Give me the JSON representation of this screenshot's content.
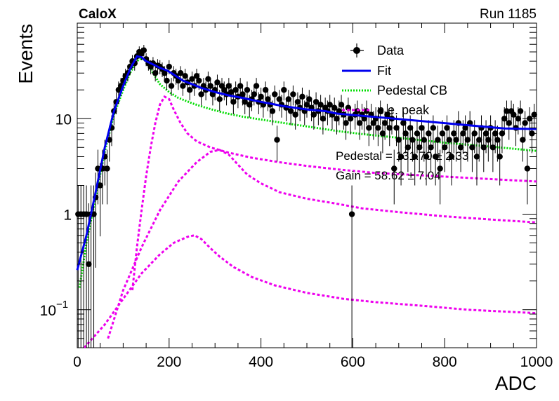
{
  "header": {
    "experiment": "CaloX",
    "run": "Run 1185"
  },
  "fit_results": {
    "pedestal": "Pedestal = 131.70 ± 2.33",
    "gain": "Gain = 58.62 ± 7.04"
  },
  "colors": {
    "data": "#000000",
    "fit": "#0000ee",
    "pedestal_cb": "#00dd00",
    "pe_peak": "#ee00ee"
  },
  "chart_data": {
    "type": "scatter",
    "xlabel": "ADC",
    "ylabel": "Events",
    "xlim": [
      0,
      1000
    ],
    "ylim": [
      0.04,
      100
    ],
    "yscale": "log",
    "grid": false,
    "legend_position": "top-right",
    "x_ticks": [
      {
        "value": 0,
        "label": "0"
      },
      {
        "value": 200,
        "label": "200"
      },
      {
        "value": 400,
        "label": "400"
      },
      {
        "value": 600,
        "label": "600"
      },
      {
        "value": 800,
        "label": "800"
      },
      {
        "value": 1000,
        "label": "1000"
      }
    ],
    "y_ticks": [
      {
        "value": 0.1,
        "base": "10",
        "exp": "−1"
      },
      {
        "value": 1,
        "label": "1"
      },
      {
        "value": 10,
        "label": "10"
      }
    ],
    "legend": [
      {
        "key": "data",
        "label": "Data"
      },
      {
        "key": "fit",
        "label": "Fit"
      },
      {
        "key": "pedestal_cb",
        "label": "Pedestal CB"
      },
      {
        "key": "pe_peak",
        "label": "p.e. peak"
      }
    ],
    "data_points": [
      [
        2,
        1
      ],
      [
        8,
        1
      ],
      [
        14,
        1
      ],
      [
        20,
        1
      ],
      [
        25,
        0.3
      ],
      [
        30,
        1
      ],
      [
        36,
        1
      ],
      [
        40,
        1.5
      ],
      [
        45,
        3
      ],
      [
        50,
        2
      ],
      [
        55,
        3
      ],
      [
        60,
        4
      ],
      [
        65,
        3
      ],
      [
        70,
        6
      ],
      [
        75,
        8
      ],
      [
        80,
        12
      ],
      [
        85,
        15
      ],
      [
        90,
        20
      ],
      [
        95,
        22
      ],
      [
        100,
        25
      ],
      [
        105,
        28
      ],
      [
        110,
        30
      ],
      [
        115,
        35
      ],
      [
        120,
        40
      ],
      [
        125,
        38
      ],
      [
        130,
        45
      ],
      [
        135,
        50
      ],
      [
        140,
        48
      ],
      [
        145,
        52
      ],
      [
        150,
        42
      ],
      [
        155,
        38
      ],
      [
        160,
        35
      ],
      [
        165,
        38
      ],
      [
        170,
        30
      ],
      [
        175,
        36
      ],
      [
        180,
        35
      ],
      [
        185,
        33
      ],
      [
        190,
        30
      ],
      [
        195,
        25
      ],
      [
        200,
        35
      ],
      [
        205,
        22
      ],
      [
        210,
        30
      ],
      [
        215,
        28
      ],
      [
        220,
        25
      ],
      [
        225,
        30
      ],
      [
        230,
        22
      ],
      [
        235,
        28
      ],
      [
        240,
        24
      ],
      [
        245,
        20
      ],
      [
        250,
        26
      ],
      [
        255,
        22
      ],
      [
        260,
        28
      ],
      [
        265,
        25
      ],
      [
        270,
        18
      ],
      [
        275,
        22
      ],
      [
        280,
        20
      ],
      [
        285,
        26
      ],
      [
        290,
        22
      ],
      [
        295,
        18
      ],
      [
        300,
        20
      ],
      [
        305,
        24
      ],
      [
        310,
        16
      ],
      [
        315,
        22
      ],
      [
        320,
        20
      ],
      [
        325,
        18
      ],
      [
        330,
        22
      ],
      [
        335,
        19
      ],
      [
        340,
        15
      ],
      [
        345,
        20
      ],
      [
        350,
        17
      ],
      [
        355,
        22
      ],
      [
        360,
        18
      ],
      [
        365,
        15
      ],
      [
        370,
        20
      ],
      [
        375,
        14
      ],
      [
        380,
        16
      ],
      [
        385,
        18
      ],
      [
        390,
        22
      ],
      [
        395,
        15
      ],
      [
        400,
        17
      ],
      [
        405,
        14
      ],
      [
        410,
        20
      ],
      [
        415,
        16
      ],
      [
        420,
        14
      ],
      [
        425,
        12
      ],
      [
        430,
        18
      ],
      [
        435,
        6
      ],
      [
        440,
        16
      ],
      [
        445,
        14
      ],
      [
        450,
        20
      ],
      [
        455,
        13
      ],
      [
        460,
        16
      ],
      [
        465,
        12
      ],
      [
        470,
        18
      ],
      [
        475,
        11
      ],
      [
        480,
        15
      ],
      [
        485,
        13
      ],
      [
        490,
        17
      ],
      [
        495,
        12
      ],
      [
        500,
        14
      ],
      [
        505,
        16
      ],
      [
        510,
        13
      ],
      [
        515,
        11
      ],
      [
        520,
        15
      ],
      [
        525,
        12
      ],
      [
        530,
        14
      ],
      [
        535,
        10
      ],
      [
        540,
        13
      ],
      [
        545,
        12
      ],
      [
        550,
        14
      ],
      [
        555,
        11
      ],
      [
        560,
        13
      ],
      [
        565,
        10
      ],
      [
        570,
        12
      ],
      [
        575,
        14
      ],
      [
        580,
        11
      ],
      [
        585,
        9
      ],
      [
        590,
        13
      ],
      [
        595,
        10
      ],
      [
        598,
        1
      ],
      [
        605,
        11
      ],
      [
        610,
        12
      ],
      [
        615,
        9
      ],
      [
        620,
        11
      ],
      [
        625,
        10
      ],
      [
        630,
        12
      ],
      [
        635,
        8
      ],
      [
        640,
        11
      ],
      [
        645,
        9
      ],
      [
        650,
        10
      ],
      [
        655,
        8
      ],
      [
        660,
        12
      ],
      [
        665,
        7
      ],
      [
        670,
        9
      ],
      [
        675,
        11
      ],
      [
        680,
        8
      ],
      [
        685,
        10
      ],
      [
        690,
        3
      ],
      [
        695,
        8
      ],
      [
        700,
        6
      ],
      [
        705,
        4
      ],
      [
        710,
        9
      ],
      [
        715,
        7
      ],
      [
        720,
        5
      ],
      [
        725,
        8
      ],
      [
        730,
        6
      ],
      [
        735,
        4
      ],
      [
        740,
        7
      ],
      [
        745,
        5
      ],
      [
        750,
        8
      ],
      [
        755,
        6
      ],
      [
        760,
        4
      ],
      [
        765,
        7
      ],
      [
        770,
        5
      ],
      [
        775,
        8
      ],
      [
        780,
        4
      ],
      [
        785,
        6
      ],
      [
        790,
        3
      ],
      [
        795,
        7
      ],
      [
        800,
        5
      ],
      [
        805,
        8
      ],
      [
        810,
        6
      ],
      [
        815,
        4
      ],
      [
        820,
        7
      ],
      [
        825,
        6
      ],
      [
        830,
        9
      ],
      [
        835,
        5
      ],
      [
        840,
        7
      ],
      [
        845,
        8
      ],
      [
        850,
        6
      ],
      [
        855,
        9
      ],
      [
        860,
        5
      ],
      [
        865,
        7
      ],
      [
        870,
        4
      ],
      [
        875,
        6
      ],
      [
        880,
        8
      ],
      [
        885,
        5
      ],
      [
        890,
        7
      ],
      [
        895,
        6
      ],
      [
        900,
        8
      ],
      [
        905,
        5
      ],
      [
        910,
        7
      ],
      [
        915,
        6
      ],
      [
        920,
        4
      ],
      [
        925,
        7
      ],
      [
        930,
        10
      ],
      [
        935,
        12
      ],
      [
        940,
        9
      ],
      [
        945,
        12
      ],
      [
        950,
        11
      ],
      [
        955,
        8
      ],
      [
        960,
        10
      ],
      [
        965,
        12
      ],
      [
        970,
        6
      ],
      [
        975,
        9
      ],
      [
        980,
        3
      ],
      [
        985,
        10
      ],
      [
        990,
        7
      ],
      [
        995,
        11
      ]
    ],
    "fit_curve": [
      [
        0,
        0.26
      ],
      [
        20,
        0.6
      ],
      [
        40,
        1.7
      ],
      [
        60,
        5
      ],
      [
        80,
        12
      ],
      [
        100,
        22
      ],
      [
        115,
        33
      ],
      [
        130,
        45
      ],
      [
        140,
        44
      ],
      [
        150,
        40
      ],
      [
        165,
        37
      ],
      [
        180,
        34
      ],
      [
        195,
        32
      ],
      [
        210,
        29
      ],
      [
        230,
        25
      ],
      [
        250,
        23
      ],
      [
        270,
        21
      ],
      [
        300,
        19
      ],
      [
        330,
        17.5
      ],
      [
        360,
        16.5
      ],
      [
        400,
        15
      ],
      [
        450,
        13.5
      ],
      [
        500,
        12.5
      ],
      [
        540,
        12
      ],
      [
        565,
        11.3
      ],
      [
        930,
        7.9
      ],
      [
        1000,
        7.8
      ]
    ],
    "pedestal_cb_curve": [
      [
        5,
        0.17
      ],
      [
        20,
        0.5
      ],
      [
        40,
        1.5
      ],
      [
        60,
        4.5
      ],
      [
        80,
        11
      ],
      [
        100,
        20
      ],
      [
        115,
        30
      ],
      [
        130,
        40
      ],
      [
        140,
        43
      ],
      [
        150,
        40
      ],
      [
        165,
        30
      ],
      [
        180,
        23
      ],
      [
        200,
        19
      ],
      [
        220,
        16.5
      ],
      [
        250,
        14.5
      ],
      [
        280,
        13
      ],
      [
        320,
        11.5
      ],
      [
        360,
        10.5
      ],
      [
        400,
        9.8
      ],
      [
        450,
        9
      ],
      [
        500,
        8.3
      ],
      [
        560,
        7.5
      ],
      [
        620,
        6.9
      ],
      [
        700,
        6.3
      ],
      [
        800,
        5.6
      ],
      [
        900,
        5.1
      ],
      [
        1000,
        4.6
      ]
    ],
    "pe_peak_curves": [
      [
        [
          120,
          0.16
        ],
        [
          130,
          0.45
        ],
        [
          140,
          1.1
        ],
        [
          150,
          2.5
        ],
        [
          160,
          5
        ],
        [
          170,
          9
        ],
        [
          180,
          14
        ],
        [
          190,
          17
        ],
        [
          200,
          16
        ],
        [
          210,
          12.5
        ],
        [
          225,
          9
        ],
        [
          240,
          7
        ],
        [
          260,
          5.8
        ],
        [
          290,
          5
        ],
        [
          330,
          4.4
        ],
        [
          380,
          3.9
        ],
        [
          440,
          3.5
        ],
        [
          500,
          3.2
        ],
        [
          580,
          2.9
        ],
        [
          650,
          2.7
        ],
        [
          750,
          2.55
        ],
        [
          850,
          2.4
        ],
        [
          1000,
          2.2
        ]
      ],
      [
        [
          67,
          0.05
        ],
        [
          100,
          0.16
        ],
        [
          140,
          0.45
        ],
        [
          180,
          1.1
        ],
        [
          220,
          2.2
        ],
        [
          260,
          3.5
        ],
        [
          290,
          4.5
        ],
        [
          310,
          4.7
        ],
        [
          330,
          4.2
        ],
        [
          350,
          3.3
        ],
        [
          370,
          2.6
        ],
        [
          400,
          2.1
        ],
        [
          440,
          1.7
        ],
        [
          500,
          1.45
        ],
        [
          560,
          1.3
        ],
        [
          620,
          1.15
        ],
        [
          700,
          1.05
        ],
        [
          800,
          0.95
        ],
        [
          900,
          0.88
        ],
        [
          1000,
          0.82
        ]
      ],
      [
        [
          15,
          0.04
        ],
        [
          60,
          0.07
        ],
        [
          100,
          0.13
        ],
        [
          140,
          0.24
        ],
        [
          180,
          0.38
        ],
        [
          210,
          0.5
        ],
        [
          240,
          0.58
        ],
        [
          255,
          0.6
        ],
        [
          270,
          0.55
        ],
        [
          290,
          0.44
        ],
        [
          310,
          0.36
        ],
        [
          340,
          0.28
        ],
        [
          380,
          0.22
        ],
        [
          430,
          0.18
        ],
        [
          500,
          0.15
        ],
        [
          580,
          0.13
        ],
        [
          650,
          0.12
        ],
        [
          750,
          0.11
        ],
        [
          850,
          0.1
        ],
        [
          1000,
          0.092
        ]
      ]
    ]
  }
}
